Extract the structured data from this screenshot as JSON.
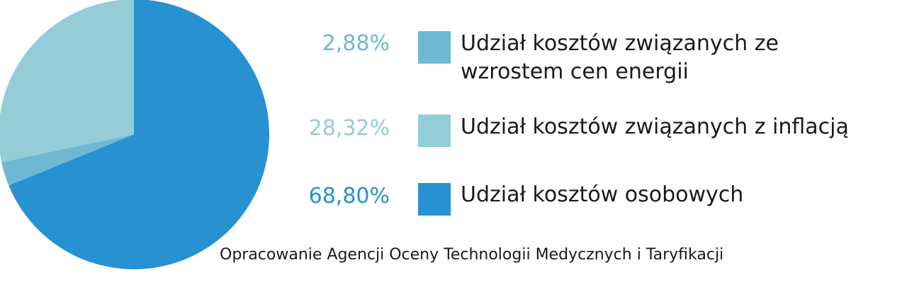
{
  "chart_data": {
    "type": "pie",
    "slices": [
      {
        "label": "Udział kosztów związanych ze wzrostem cen energii",
        "value": 2.88,
        "display": "2,88%",
        "color": "#6fb8d4"
      },
      {
        "label": "Udział kosztów związanych z inflacją",
        "value": 28.32,
        "display": "28,32%",
        "color": "#94ccd8"
      },
      {
        "label": "Udział kosztów osobowych",
        "value": 68.8,
        "display": "68,80%",
        "color": "#2791d1"
      }
    ],
    "source": "Opracowanie Agencji Oceny Technologii Medycznych i Taryfikacji"
  }
}
